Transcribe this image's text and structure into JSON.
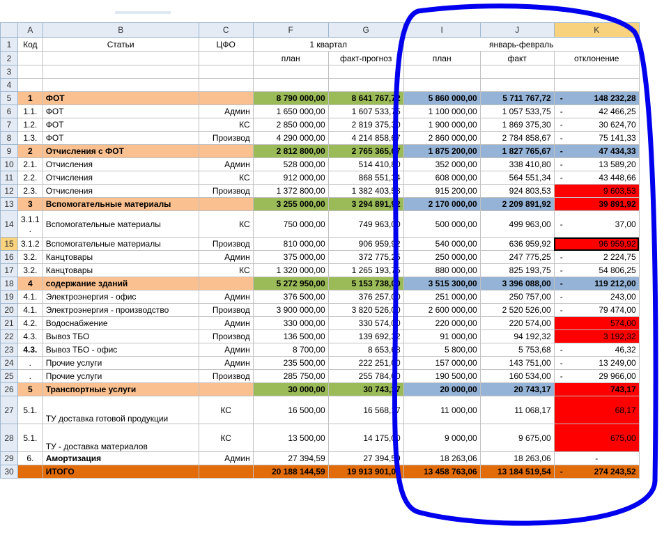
{
  "columns": [
    "A",
    "B",
    "C",
    "F",
    "G",
    "I",
    "J",
    "K"
  ],
  "header": {
    "row1": {
      "kod": "Код",
      "stati": "Статьи",
      "cfo": "ЦФО",
      "q1": "1 квартал",
      "janfeb": "январь-февраль"
    },
    "row2": {
      "plan": "план",
      "fact_prognoz": "факт-прогноз",
      "plan2": "план",
      "fact": "факт",
      "otkl": "отклонение"
    }
  },
  "rows": [
    {
      "n": "5",
      "kod": "1",
      "name": "ФОТ",
      "cfo": "",
      "f": "8 790 000,00",
      "g": "8 641 767,72",
      "i": "5 860 000,00",
      "j": "5 711 767,72",
      "k": "148 232,28",
      "k_dash": true,
      "style": "group",
      "k_style": "blue"
    },
    {
      "n": "6",
      "kod": "1.1.",
      "name": "ФОТ",
      "cfo": "Админ",
      "f": "1 650 000,00",
      "g": "1 607 533,75",
      "i": "1 100 000,00",
      "j": "1 057 533,75",
      "k": "42 466,25",
      "k_dash": true
    },
    {
      "n": "7",
      "kod": "1.2.",
      "name": "ФОТ",
      "cfo": "КС",
      "f": "2 850 000,00",
      "g": "2 819 375,30",
      "i": "1 900 000,00",
      "j": "1 869 375,30",
      "k": "30 624,70",
      "k_dash": true
    },
    {
      "n": "8",
      "kod": "1.3.",
      "name": "ФОТ",
      "cfo": "Производ",
      "f": "4 290 000,00",
      "g": "4 214 858,67",
      "i": "2 860 000,00",
      "j": "2 784 858,67",
      "k": "75 141,33",
      "k_dash": true
    },
    {
      "n": "9",
      "kod": "2",
      "name": "Отчисления с ФОТ",
      "cfo": "",
      "f": "2 812 800,00",
      "g": "2 765 365,67",
      "i": "1 875 200,00",
      "j": "1 827 765,67",
      "k": "47 434,33",
      "k_dash": true,
      "style": "group",
      "k_style": "blue"
    },
    {
      "n": "10",
      "kod": "2.1.",
      "name": "Отчисления",
      "cfo": "Админ",
      "f": "528 000,00",
      "g": "514 410,80",
      "i": "352 000,00",
      "j": "338 410,80",
      "k": "13 589,20",
      "k_dash": true
    },
    {
      "n": "11",
      "kod": "2.2.",
      "name": "Отчисления",
      "cfo": "КС",
      "f": "912 000,00",
      "g": "868 551,34",
      "i": "608 000,00",
      "j": "564 551,34",
      "k": "43 448,66",
      "k_dash": true
    },
    {
      "n": "12",
      "kod": "2.3.",
      "name": "Отчисления",
      "cfo": "Производ",
      "f": "1 372 800,00",
      "g": "1 382 403,53",
      "i": "915 200,00",
      "j": "924 803,53",
      "k": "9 603,53",
      "k_dash": false,
      "k_style": "red"
    },
    {
      "n": "13",
      "kod": "3",
      "name": "Вспомогательные материалы",
      "cfo": "",
      "f": "3 255 000,00",
      "g": "3 294 891,92",
      "i": "2 170 000,00",
      "j": "2 209 891,92",
      "k": "39 891,92",
      "k_dash": false,
      "style": "group",
      "k_style": "red"
    },
    {
      "n": "14",
      "kod": "3.1.1 .",
      "name": "Вспомогательные материалы",
      "cfo": "КС",
      "f": "750 000,00",
      "g": "749 963,00",
      "i": "500 000,00",
      "j": "499 963,00",
      "k": "37,00",
      "k_dash": true,
      "tall": true
    },
    {
      "n": "15",
      "kod": "3.1.2",
      "name": "Вспомогательные материалы",
      "cfo": "Производ",
      "f": "810 000,00",
      "g": "906 959,92",
      "i": "540 000,00",
      "j": "636 959,92",
      "k": "96 959,92",
      "k_dash": false,
      "k_style": "red",
      "selected": true
    },
    {
      "n": "16",
      "kod": "3.2.",
      "name": "Канцтовары",
      "cfo": "Админ",
      "f": "375 000,00",
      "g": "372 775,25",
      "i": "250 000,00",
      "j": "247 775,25",
      "k": "2 224,75",
      "k_dash": true
    },
    {
      "n": "17",
      "kod": "3.2.",
      "name": "Канцтовары",
      "cfo": "КС",
      "f": "1 320 000,00",
      "g": "1 265 193,75",
      "i": "880 000,00",
      "j": "825 193,75",
      "k": "54 806,25",
      "k_dash": true
    },
    {
      "n": "18",
      "kod": "4",
      "name": "содержание зданий",
      "cfo": "",
      "f": "5 272 950,00",
      "g": "5 153 738,00",
      "i": "3 515 300,00",
      "j": "3 396 088,00",
      "k": "119 212,00",
      "k_dash": true,
      "style": "group",
      "k_style": "blue"
    },
    {
      "n": "19",
      "kod": "4.1.",
      "name": "Электроэнергия - офис",
      "cfo": "Админ",
      "f": "376 500,00",
      "g": "376 257,00",
      "i": "251 000,00",
      "j": "250 757,00",
      "k": "243,00",
      "k_dash": true
    },
    {
      "n": "20",
      "kod": "4.1.",
      "name": "Электроэнергия - производство",
      "cfo": "Производ",
      "f": "3 900 000,00",
      "g": "3 820 526,00",
      "i": "2 600 000,00",
      "j": "2 520 526,00",
      "k": "79 474,00",
      "k_dash": true
    },
    {
      "n": "21",
      "kod": "4.2.",
      "name": "Водоснабжение",
      "cfo": "Админ",
      "f": "330 000,00",
      "g": "330 574,00",
      "i": "220 000,00",
      "j": "220 574,00",
      "k": "574,00",
      "k_dash": false,
      "k_style": "red"
    },
    {
      "n": "22",
      "kod": "4.3.",
      "name": "Вывоз ТБО",
      "cfo": "Производ",
      "f": "136 500,00",
      "g": "139 692,32",
      "i": "91 000,00",
      "j": "94 192,32",
      "k": "3 192,32",
      "k_dash": false,
      "k_style": "red"
    },
    {
      "n": "23",
      "kod": "4.3.",
      "name": "Вывоз ТБО - офис",
      "cfo": "Админ",
      "f": "8 700,00",
      "g": "8 653,68",
      "i": "5 800,00",
      "j": "5 753,68",
      "k": "46,32",
      "k_dash": true,
      "bold_kod": true
    },
    {
      "n": "24",
      "kod": ".",
      "name": "Прочие услуги",
      "cfo": "Админ",
      "f": "235 500,00",
      "g": "222 251,00",
      "i": "157 000,00",
      "j": "143 751,00",
      "k": "13 249,00",
      "k_dash": true
    },
    {
      "n": "25",
      "kod": ".",
      "name": "Прочие услуги",
      "cfo": "Производ",
      "f": "285 750,00",
      "g": "255 784,00",
      "i": "190 500,00",
      "j": "160 534,00",
      "k": "29 966,00",
      "k_dash": true
    },
    {
      "n": "26",
      "kod": "5",
      "name": "Транспортные услуги",
      "cfo": "",
      "f": "30 000,00",
      "g": "30 743,17",
      "i": "20 000,00",
      "j": "20 743,17",
      "k": "743,17",
      "k_dash": false,
      "style": "group",
      "k_style": "red"
    },
    {
      "n": "27",
      "kod": "5.1.",
      "name": "ТУ доставка готовой продукции",
      "cfo": "КС",
      "f": "16 500,00",
      "g": "16 568,17",
      "i": "11 000,00",
      "j": "11 068,17",
      "k": "68,17",
      "k_dash": false,
      "k_style": "red",
      "xtall": true
    },
    {
      "n": "28",
      "kod": "5.1.",
      "name": "ТУ - доставка материалов",
      "cfo": "КС",
      "f": "13 500,00",
      "g": "14 175,00",
      "i": "9 000,00",
      "j": "9 675,00",
      "k": "675,00",
      "k_dash": false,
      "k_style": "red",
      "xtall": true
    },
    {
      "n": "29",
      "kod": "6.",
      "name": "Амортизация",
      "cfo": "Админ",
      "f": "27 394,59",
      "g": "27 394,59",
      "i": "18 263,06",
      "j": "18 263,06",
      "k": "-",
      "k_dash": false,
      "bold_name": true,
      "k_center": true
    },
    {
      "n": "30",
      "kod": "",
      "name": "ИТОГО",
      "cfo": "",
      "f": "20 188 144,59",
      "g": "19 913 901,07",
      "i": "13 458 763,06",
      "j": "13 184 519,54",
      "k": "274 243,52",
      "k_dash": true,
      "style": "total"
    }
  ],
  "annotation": {
    "color": "#0000ee",
    "shape": "hand-drawn ellipse around columns I–K"
  }
}
